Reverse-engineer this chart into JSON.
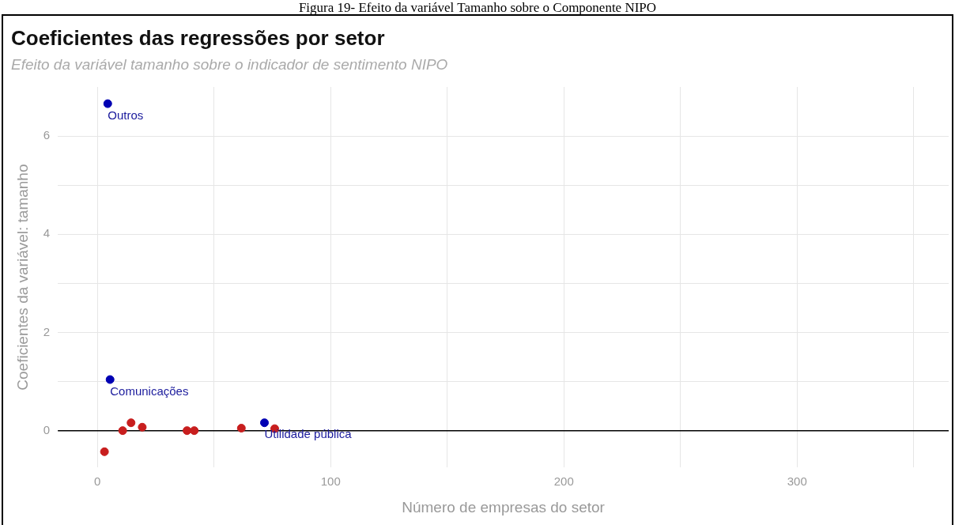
{
  "chart_data": {
    "type": "scatter",
    "title": "Coeficientes das regressões por setor",
    "subtitle": "Efeito da variável tamanho sobre o indicador de sentimento NIPO",
    "xlabel": "Número de empresas do setor",
    "ylabel": "Coeficientes da variável: tamanho",
    "series": [
      {
        "color": "#0000b3",
        "x": [
          4.4,
          5.4,
          71.6
        ],
        "values": [
          6.66,
          1.04,
          0.16
        ]
      },
      {
        "color": "#c81e1e",
        "x": [
          3,
          10.8,
          14.4,
          19.2,
          38.4,
          41.5,
          61.7,
          76
        ],
        "values": [
          -0.43,
          0,
          0.16,
          0.07,
          0,
          0,
          0.05,
          0.04
        ]
      }
    ],
    "annotations": [
      "Figura 19- Efeito da variável Tamanho sobre o Componente NIPO",
      {
        "text": "Outros",
        "x": 4.4,
        "y": 6.66
      },
      {
        "text": "Comunicações",
        "x": 5.4,
        "y": 1.04
      },
      {
        "text": "Utilidade pública",
        "x": 71.6,
        "y": 0.16
      }
    ],
    "ref_lines": [
      {
        "axis": "y",
        "value": 0,
        "color": "#000000"
      }
    ],
    "xlim": [
      -17,
      365
    ],
    "xticks": [
      0,
      {
        "value": 50,
        "label": null
      },
      100,
      {
        "value": 150,
        "label": null
      },
      200,
      {
        "value": 250,
        "label": null
      },
      300,
      {
        "value": 350,
        "label": null
      }
    ],
    "ylim": [
      -0.75,
      7
    ],
    "yticks": [
      0,
      {
        "value": 1,
        "label": null
      },
      2,
      {
        "value": 3,
        "label": null
      },
      4,
      {
        "value": 5,
        "label": null
      },
      6
    ],
    "grid": true,
    "legend": false,
    "marker": "circle"
  }
}
